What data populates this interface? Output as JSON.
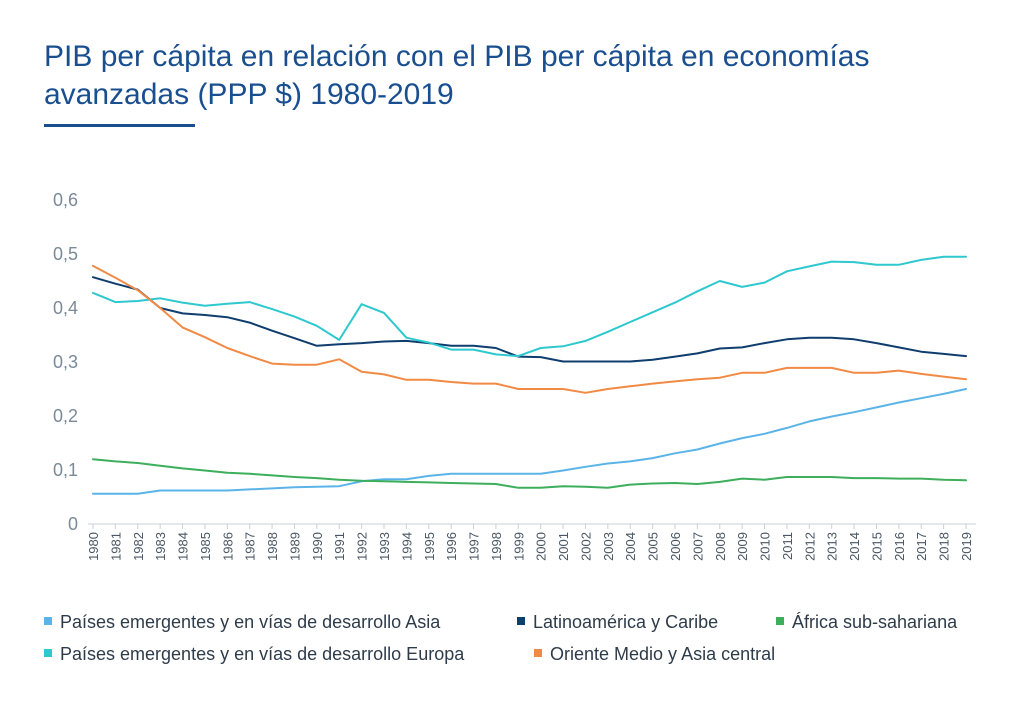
{
  "title_line1": "PIB per cápita en relación con el PIB per cápita en economías",
  "title_line2": "avanzadas (PPP $) 1980-2019",
  "chart_data": {
    "type": "line",
    "x": [
      "1980",
      "1981",
      "1982",
      "1983",
      "1984",
      "1985",
      "1986",
      "1987",
      "1988",
      "1989",
      "1990",
      "1991",
      "1992",
      "1993",
      "1994",
      "1995",
      "1996",
      "1997",
      "1998",
      "1999",
      "2000",
      "2001",
      "2002",
      "2003",
      "2004",
      "2005",
      "2006",
      "2007",
      "2008",
      "2009",
      "2010",
      "2011",
      "2012",
      "2013",
      "2014",
      "2015",
      "2016",
      "2017",
      "2018",
      "2019"
    ],
    "y_ticks": [
      "0",
      "0,1",
      "0,2",
      "0,3",
      "0,4",
      "0,5",
      "0,6"
    ],
    "ylim": [
      0,
      0.6
    ],
    "grid": false,
    "legend_position": "bottom",
    "series": [
      {
        "name": "Países emergentes y en vías de desarrollo Asia",
        "color": "#5bb4e8",
        "values": [
          0.056,
          0.056,
          0.056,
          0.062,
          0.062,
          0.062,
          0.062,
          0.064,
          0.066,
          0.068,
          0.069,
          0.07,
          0.079,
          0.083,
          0.083,
          0.089,
          0.093,
          0.093,
          0.093,
          0.093,
          0.093,
          0.099,
          0.106,
          0.112,
          0.116,
          0.122,
          0.131,
          0.138,
          0.149,
          0.159,
          0.167,
          0.178,
          0.19,
          0.199,
          0.207,
          0.216,
          0.225,
          0.233,
          0.241,
          0.25
        ]
      },
      {
        "name": "Latinoamérica y Caribe",
        "color": "#0e3d6e",
        "values": [
          0.457,
          0.445,
          0.434,
          0.4,
          0.39,
          0.387,
          0.383,
          0.373,
          0.358,
          0.344,
          0.33,
          0.333,
          0.335,
          0.338,
          0.339,
          0.335,
          0.33,
          0.33,
          0.326,
          0.31,
          0.309,
          0.301,
          0.301,
          0.301,
          0.301,
          0.304,
          0.31,
          0.316,
          0.325,
          0.327,
          0.335,
          0.342,
          0.345,
          0.345,
          0.342,
          0.335,
          0.327,
          0.319,
          0.315,
          0.311
        ]
      },
      {
        "name": "África sub-sahariana",
        "color": "#3daf5c",
        "values": [
          0.12,
          0.116,
          0.113,
          0.108,
          0.103,
          0.099,
          0.095,
          0.093,
          0.09,
          0.087,
          0.085,
          0.082,
          0.08,
          0.079,
          0.078,
          0.077,
          0.076,
          0.075,
          0.074,
          0.067,
          0.067,
          0.07,
          0.069,
          0.067,
          0.073,
          0.075,
          0.076,
          0.074,
          0.078,
          0.084,
          0.082,
          0.087,
          0.087,
          0.087,
          0.085,
          0.085,
          0.084,
          0.084,
          0.082,
          0.081
        ]
      },
      {
        "name": "Países emergentes y en vías de desarrollo Europa",
        "color": "#2ec8cf",
        "values": [
          0.428,
          0.411,
          0.413,
          0.418,
          0.41,
          0.404,
          0.408,
          0.411,
          0.398,
          0.384,
          0.367,
          0.341,
          0.407,
          0.391,
          0.345,
          0.336,
          0.323,
          0.323,
          0.314,
          0.311,
          0.326,
          0.329,
          0.339,
          0.356,
          0.374,
          0.392,
          0.41,
          0.431,
          0.45,
          0.439,
          0.447,
          0.468,
          0.477,
          0.486,
          0.485,
          0.48,
          0.48,
          0.489,
          0.495,
          0.495
        ]
      },
      {
        "name": "Oriente Medio y Asia central",
        "color": "#f18a45",
        "values": [
          0.478,
          0.456,
          0.433,
          0.4,
          0.364,
          0.346,
          0.326,
          0.311,
          0.297,
          0.295,
          0.295,
          0.305,
          0.282,
          0.277,
          0.267,
          0.267,
          0.263,
          0.26,
          0.26,
          0.25,
          0.25,
          0.25,
          0.243,
          0.25,
          0.255,
          0.26,
          0.264,
          0.268,
          0.271,
          0.28,
          0.28,
          0.289,
          0.289,
          0.289,
          0.28,
          0.28,
          0.284,
          0.278,
          0.273,
          0.268
        ]
      }
    ]
  }
}
